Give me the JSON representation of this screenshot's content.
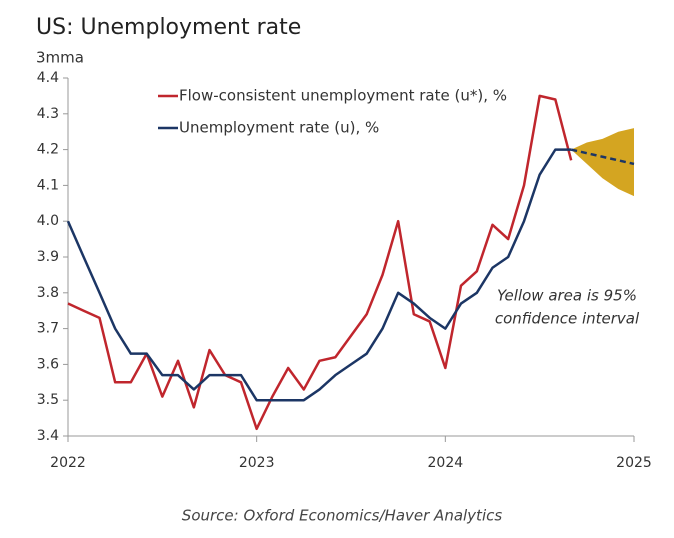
{
  "chart_data": {
    "type": "line",
    "title": "US: Unemployment rate",
    "y_label": "3mma",
    "source": "Source: Oxford Economics/Haver Analytics",
    "annotation": [
      "Yellow area is 95%",
      "confidence interval"
    ],
    "xlim": [
      2022,
      2025
    ],
    "xticks": [
      2022,
      2023,
      2024,
      2025
    ],
    "ylim": [
      3.4,
      4.4
    ],
    "yticks": [
      3.4,
      3.5,
      3.6,
      3.7,
      3.8,
      3.9,
      {
        "value": 4,
        "label": "4.0"
      },
      4.1,
      4.2,
      4.3,
      4.4
    ],
    "x": [
      2022,
      2022.083,
      2022.167,
      2022.25,
      2022.333,
      2022.417,
      2022.5,
      2022.583,
      2022.667,
      2022.75,
      2022.833,
      2022.917,
      2023,
      2023.083,
      2023.167,
      2023.25,
      2023.333,
      2023.417,
      2023.5,
      2023.583,
      2023.667,
      2023.75,
      2023.833,
      2023.917,
      2024,
      2024.083,
      2024.167,
      2024.25,
      2024.333,
      2024.417,
      2024.5,
      2024.583,
      2024.667
    ],
    "series": [
      {
        "name": "Flow-consistent unemployment rate (u*), %",
        "color": "#c0262d",
        "values": [
          3.77,
          3.75,
          3.73,
          3.55,
          3.55,
          3.63,
          3.51,
          3.61,
          3.48,
          3.64,
          3.57,
          3.55,
          3.42,
          3.51,
          3.59,
          3.53,
          3.61,
          3.62,
          3.68,
          3.74,
          3.85,
          4.0,
          3.74,
          3.72,
          3.59,
          3.82,
          3.86,
          3.99,
          3.95,
          4.1,
          4.35,
          4.34,
          4.17
        ]
      },
      {
        "name": "Unemployment rate (u), %",
        "color": "#1c3665",
        "values": [
          4.0,
          3.9,
          3.8,
          3.7,
          3.63,
          3.63,
          3.57,
          3.57,
          3.53,
          3.57,
          3.57,
          3.57,
          3.5,
          3.5,
          3.5,
          3.5,
          3.53,
          3.57,
          3.6,
          3.63,
          3.7,
          3.8,
          3.77,
          3.73,
          3.7,
          3.77,
          3.8,
          3.87,
          3.9,
          4.0,
          4.13,
          4.2,
          4.2
        ]
      }
    ],
    "forecast": {
      "color": "#1c3665",
      "band_color": "#d4a521",
      "x": [
        2024.667,
        2024.75,
        2024.833,
        2024.917,
        2025
      ],
      "values": [
        4.2,
        4.19,
        4.18,
        4.17,
        4.16
      ],
      "upper": [
        4.2,
        4.22,
        4.23,
        4.25,
        4.26
      ],
      "lower": [
        4.2,
        4.16,
        4.12,
        4.09,
        4.07
      ]
    }
  }
}
